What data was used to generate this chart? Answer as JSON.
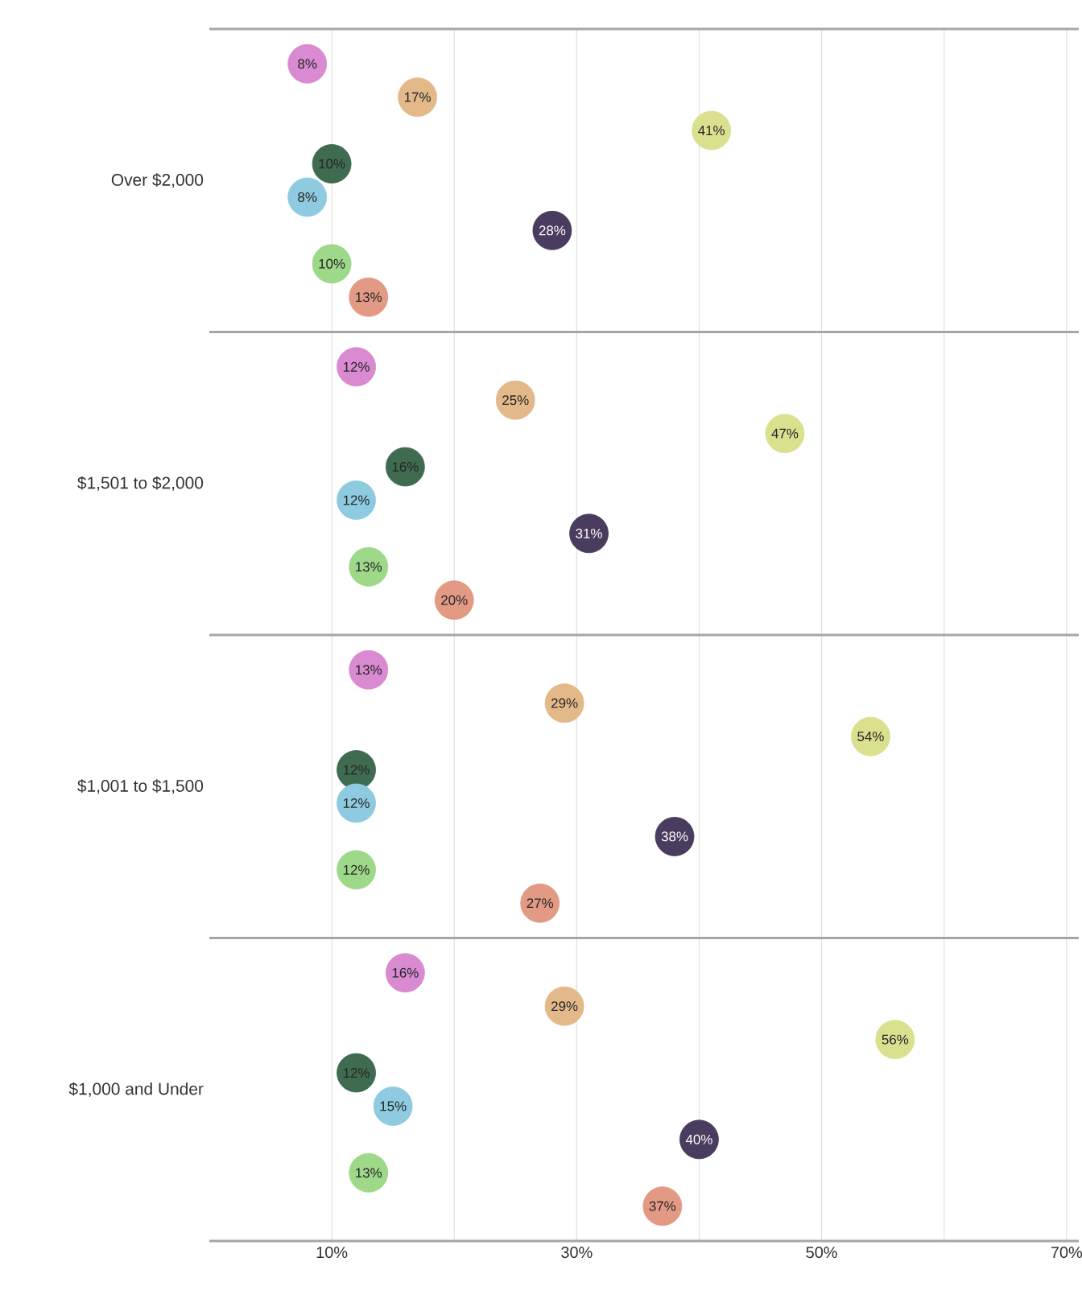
{
  "chart_data": {
    "type": "scatter",
    "orientation": "horizontal",
    "grid": "x",
    "categories": [
      "Over $2,000",
      "$1,501 to $2,000",
      "$1,001 to $1,500",
      "$1,000 and Under"
    ],
    "xlim": [
      0,
      71
    ],
    "xticks": [
      {
        "value": 10,
        "label": "10%"
      },
      {
        "value": 20,
        "label": null
      },
      {
        "value": 30,
        "label": "30%"
      },
      {
        "value": 40,
        "label": null
      },
      {
        "value": 50,
        "label": "50%"
      },
      {
        "value": 60,
        "label": null
      },
      {
        "value": 70,
        "label": "70%"
      }
    ],
    "series": [
      {
        "color": "#d98ad0",
        "values": [
          8,
          12,
          13,
          16
        ],
        "value_labels": [
          "8%",
          "12%",
          "13%",
          "16%"
        ]
      },
      {
        "color": "#e3b98a",
        "values": [
          17,
          25,
          29,
          29
        ],
        "value_labels": [
          "17%",
          "25%",
          "29%",
          "29%"
        ]
      },
      {
        "color": "#dbe08f",
        "values": [
          41,
          47,
          54,
          56
        ],
        "value_labels": [
          "41%",
          "47%",
          "54%",
          "56%"
        ]
      },
      {
        "color": "#3f6b50",
        "values": [
          10,
          16,
          12,
          12
        ],
        "value_labels": [
          "10%",
          "16%",
          "12%",
          "12%"
        ]
      },
      {
        "color": "#8ecbe0",
        "values": [
          8,
          12,
          12,
          15
        ],
        "value_labels": [
          "8%",
          "12%",
          "12%",
          "15%"
        ]
      },
      {
        "color": "#4a3c5e",
        "values": [
          28,
          31,
          38,
          40
        ],
        "value_labels": [
          "28%",
          "31%",
          "38%",
          "40%"
        ]
      },
      {
        "color": "#9ed98a",
        "values": [
          10,
          13,
          12,
          13
        ],
        "value_labels": [
          "10%",
          "13%",
          "12%",
          "13%"
        ]
      },
      {
        "color": "#e39a85",
        "values": [
          13,
          20,
          27,
          37
        ],
        "value_labels": [
          "13%",
          "20%",
          "27%",
          "37%"
        ]
      }
    ]
  }
}
